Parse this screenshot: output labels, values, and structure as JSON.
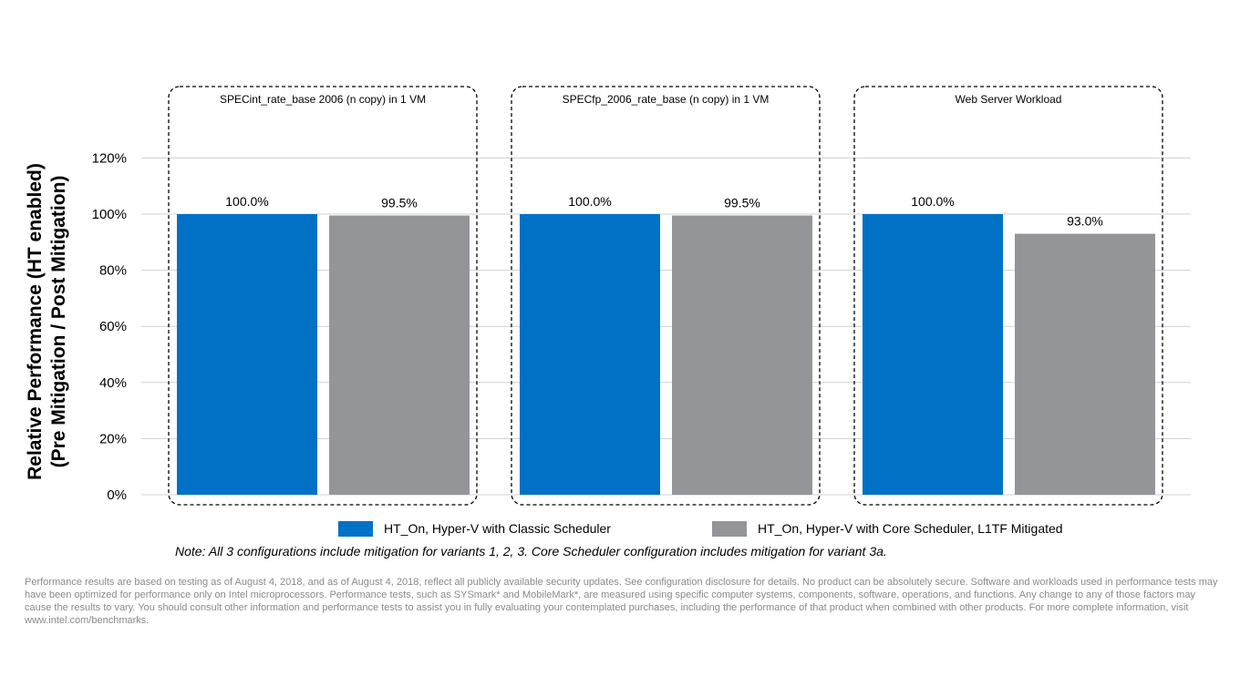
{
  "chart_data": {
    "type": "bar",
    "ylabel_line1": "Relative Performance (HT enabled)",
    "ylabel_line2": "(Pre Mitigation / Post Mitigation)",
    "ylim": [
      0,
      130
    ],
    "yticks": [
      0,
      20,
      40,
      60,
      80,
      100,
      120
    ],
    "ytick_labels": [
      "0%",
      "20%",
      "40%",
      "60%",
      "80%",
      "100%",
      "120%"
    ],
    "grid": true,
    "categories": [
      "SPECint_rate_base 2006 (n copy) in 1 VM",
      "SPECfp_2006_rate_base (n copy) in 1 VM",
      "Web Server Workload"
    ],
    "series": [
      {
        "name": "HT_On, Hyper-V with Classic Scheduler",
        "color": "#0071c5",
        "values": [
          100.0,
          100.0,
          100.0
        ],
        "labels": [
          "100.0%",
          "100.0%",
          "100.0%"
        ]
      },
      {
        "name": "HT_On, Hyper-V with Core Scheduler, L1TF Mitigated",
        "color": "#939598",
        "values": [
          99.5,
          99.5,
          93.0
        ],
        "labels": [
          "99.5%",
          "99.5%",
          "93.0%"
        ]
      }
    ],
    "legend_position": "bottom"
  },
  "note": "Note: All 3 configurations include mitigation for variants 1, 2, 3. Core Scheduler configuration includes mitigation for variant 3a.",
  "disclaimer": "Performance results are based on testing as of August 4, 2018, and as of August 4, 2018, reflect all publicly available security updates. See configuration disclosure for details. No product can be absolutely secure. Software and workloads used in performance tests may have been optimized for performance only on Intel microprocessors. Performance tests, such as SYSmark* and MobileMark*, are measured using specific computer systems, components, software, operations, and functions. Any change to any of those factors may cause the results to vary. You should consult other information and performance tests to assist you in fully evaluating your contemplated purchases, including the performance of that product when combined with other products. For more complete information, visit www.intel.com/benchmarks."
}
